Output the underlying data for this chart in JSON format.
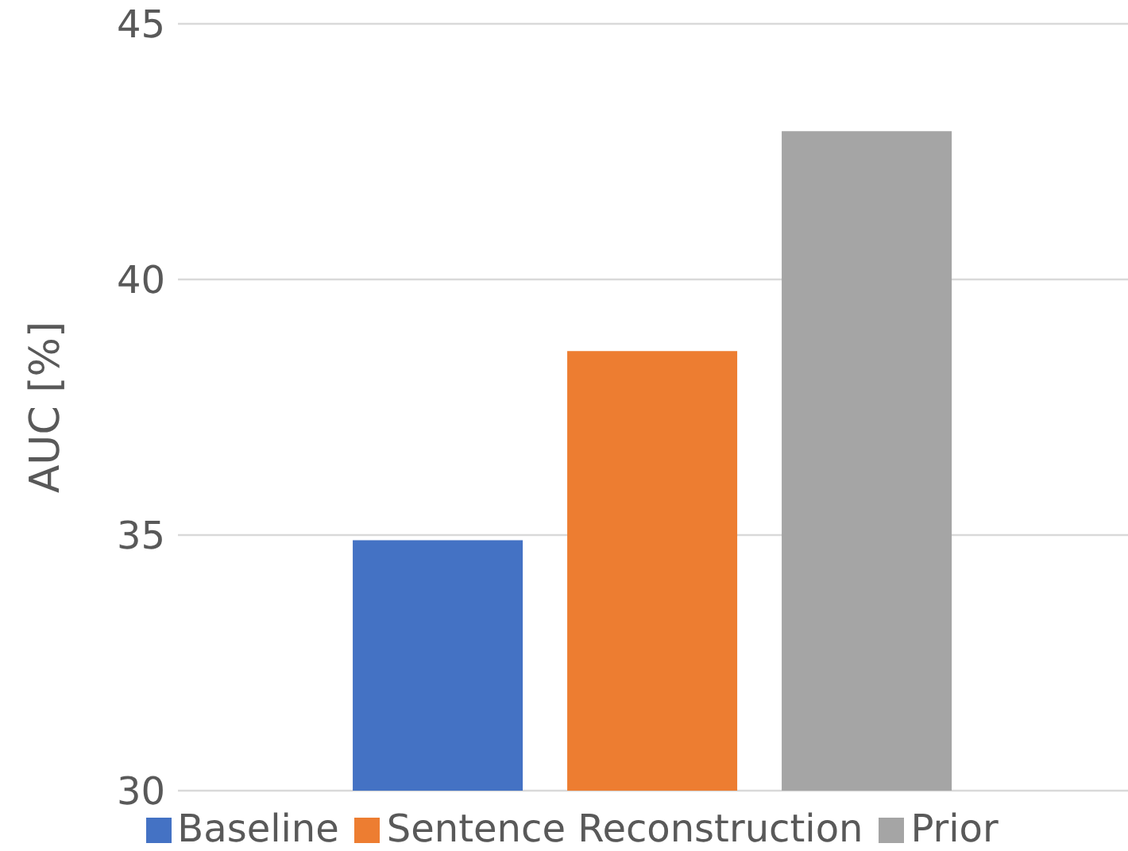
{
  "chart_data": {
    "type": "bar",
    "ylabel": "AUC [%]",
    "categories": [
      null
    ],
    "series": [
      {
        "name": "Baseline",
        "color": "#4472c4",
        "values": [
          34.9
        ]
      },
      {
        "name": "Sentence Reconstruction",
        "color": "#ed7d31",
        "values": [
          38.6
        ]
      },
      {
        "name": "Prior",
        "color": "#a5a5a5",
        "values": [
          42.9
        ]
      }
    ],
    "ylim": [
      30,
      45
    ],
    "yticks": [
      30,
      35,
      40,
      45
    ],
    "grid": "y",
    "legend": "bottom",
    "tick_labels": "y"
  }
}
